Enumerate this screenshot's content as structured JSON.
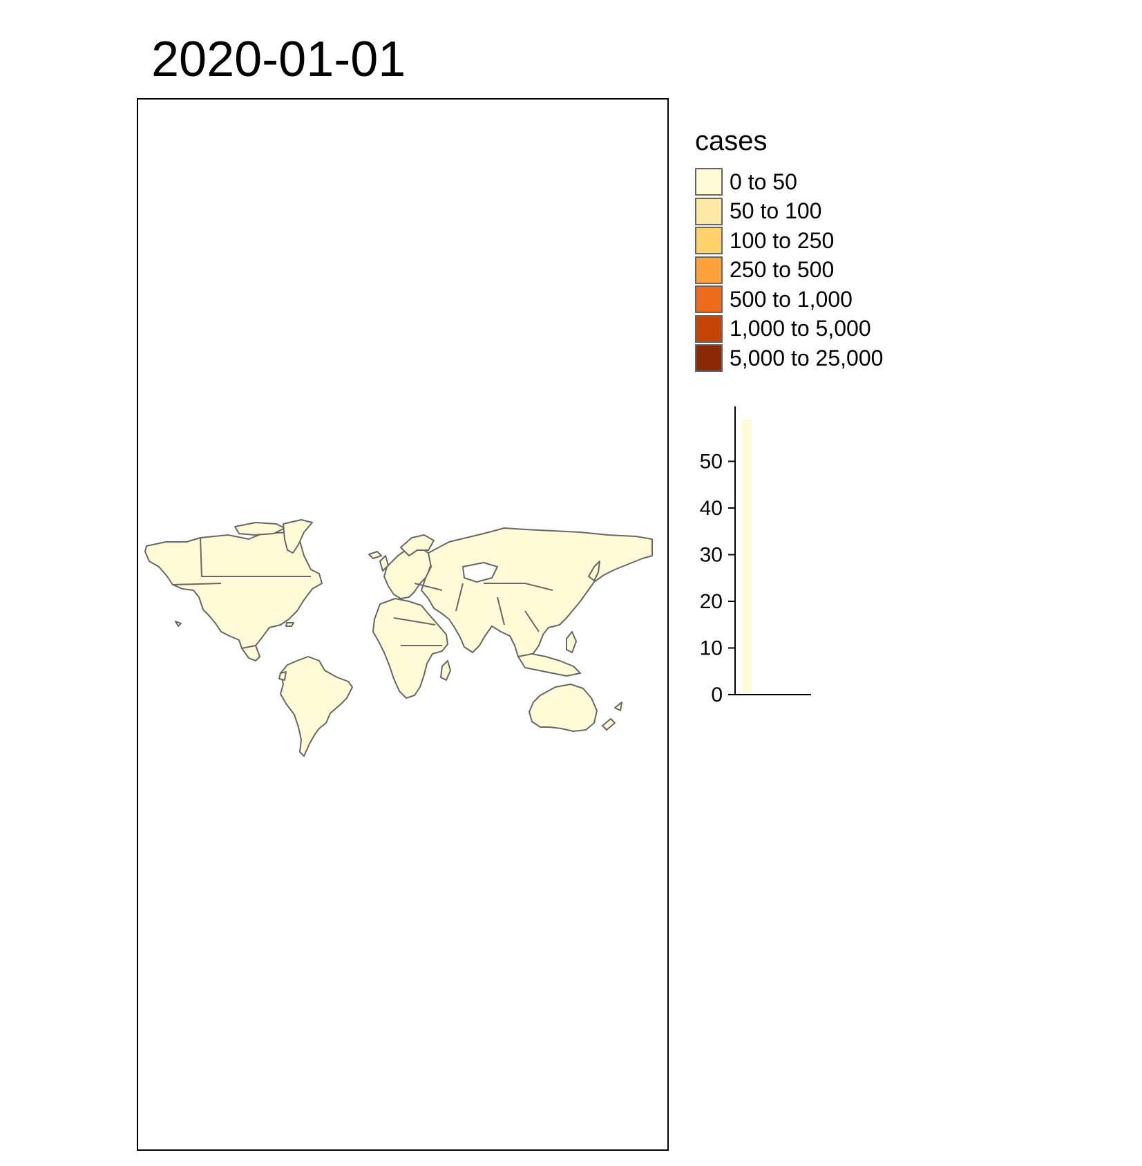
{
  "map": {
    "title": "2020-01-01",
    "fill_color": "#fffbd6",
    "border_color": "#666666",
    "regions": [
      "north-america",
      "greenland",
      "south-america",
      "europe",
      "asia",
      "africa",
      "australia",
      "new-zealand"
    ]
  },
  "legend": {
    "title": "cases",
    "items": [
      {
        "label": "0 to 50",
        "color": "#fffbd6"
      },
      {
        "label": "50 to 100",
        "color": "#fee8a6"
      },
      {
        "label": "100 to 250",
        "color": "#fed16b"
      },
      {
        "label": "250 to 500",
        "color": "#fda13a"
      },
      {
        "label": "500 to 1,000",
        "color": "#ec6b1d"
      },
      {
        "label": "1,000 to 5,000",
        "color": "#c34405"
      },
      {
        "label": "5,000 to 25,000",
        "color": "#8b2b06"
      }
    ]
  },
  "chart_data": {
    "type": "bar",
    "categories": [
      "0 to 50",
      "50 to 100",
      "100 to 250",
      "250 to 500",
      "500 to 1,000",
      "1,000 to 5,000",
      "5,000 to 25,000"
    ],
    "values": [
      59,
      0,
      0,
      0,
      0,
      0,
      0
    ],
    "ylim": [
      0,
      60
    ],
    "yticks": [
      "0",
      "10",
      "20",
      "30",
      "40",
      "50"
    ],
    "bar_color": "#fffbd6"
  }
}
